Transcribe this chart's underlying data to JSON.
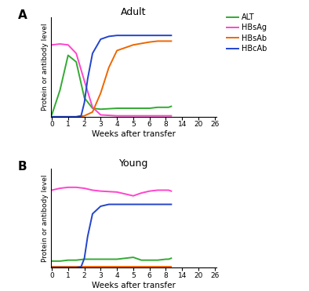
{
  "title_A": "Adult",
  "title_B": "Young",
  "panel_A_label": "A",
  "panel_B_label": "B",
  "xlabel": "Weeks after transfer",
  "ylabel": "Protein or antibody level",
  "legend_labels": [
    "ALT",
    "HBsAg",
    "HBsAb",
    "HBcAb"
  ],
  "legend_colors": [
    "#33aa33",
    "#ff44cc",
    "#ee6600",
    "#2244cc"
  ],
  "colors": {
    "ALT": "#33aa33",
    "HBsAg": "#ff44cc",
    "HBsAb": "#ee6600",
    "HBcAb": "#2244cc"
  },
  "x_tick_positions": [
    0,
    1,
    2,
    3,
    4,
    5,
    6,
    7,
    8,
    9,
    10,
    11
  ],
  "x_tick_labels": [
    "0",
    "1",
    "2",
    "3",
    "4",
    "5",
    "6",
    "8",
    "14",
    "20",
    "26",
    ""
  ],
  "x_real_weeks": [
    0,
    1,
    2,
    3,
    4,
    5,
    6,
    8,
    14,
    20,
    26
  ],
  "xlim": [
    -0.1,
    11.0
  ],
  "ylim": [
    0,
    1.05
  ],
  "background_color": "#ffffff",
  "linewidth": 1.4,
  "panel_A": {
    "ALT_x": [
      0,
      0.5,
      1.0,
      1.5,
      2.0,
      2.5,
      3.0,
      4.0,
      5.0,
      6.0,
      7.0,
      8.0,
      9.0,
      10.0
    ],
    "ALT_y": [
      0.02,
      0.28,
      0.65,
      0.58,
      0.2,
      0.09,
      0.08,
      0.09,
      0.09,
      0.09,
      0.1,
      0.1,
      0.1,
      0.11
    ],
    "HBsAg_x": [
      0,
      0.5,
      1.0,
      1.5,
      2.0,
      2.5,
      3.0,
      4.0,
      5.0,
      6.0,
      7.0,
      8.0,
      9.0,
      10.0
    ],
    "HBsAg_y": [
      0.76,
      0.77,
      0.76,
      0.67,
      0.38,
      0.1,
      0.02,
      0.01,
      0.01,
      0.01,
      0.01,
      0.01,
      0.01,
      0.01
    ],
    "HBsAb_x": [
      0,
      1.5,
      2.0,
      2.5,
      3.0,
      3.5,
      4.0,
      5.0,
      6.0,
      7.0,
      8.0,
      9.0,
      10.0
    ],
    "HBsAb_y": [
      0.0,
      0.0,
      0.01,
      0.05,
      0.25,
      0.52,
      0.7,
      0.76,
      0.79,
      0.8,
      0.8,
      0.8,
      0.8
    ],
    "HBcAb_x": [
      0,
      1.5,
      1.8,
      2.0,
      2.2,
      2.5,
      3.0,
      3.5,
      4.0,
      5.0,
      6.0,
      7.0,
      8.0,
      9.0,
      10.0
    ],
    "HBcAb_y": [
      0.0,
      0.0,
      0.01,
      0.15,
      0.4,
      0.67,
      0.82,
      0.85,
      0.86,
      0.86,
      0.86,
      0.86,
      0.86,
      0.86,
      0.86
    ]
  },
  "panel_B": {
    "ALT_x": [
      0,
      0.5,
      1.0,
      1.5,
      2.0,
      2.5,
      3.0,
      4.0,
      5.0,
      5.5,
      6.0,
      7.0,
      8.0,
      9.0,
      10.0
    ],
    "ALT_y": [
      0.07,
      0.07,
      0.08,
      0.08,
      0.09,
      0.09,
      0.09,
      0.09,
      0.11,
      0.08,
      0.08,
      0.08,
      0.09,
      0.09,
      0.1
    ],
    "HBsAg_x": [
      0,
      0.5,
      1.0,
      1.5,
      2.0,
      2.5,
      3.0,
      4.0,
      5.0,
      5.5,
      6.0,
      7.0,
      8.0,
      9.0,
      10.0
    ],
    "HBsAg_y": [
      0.82,
      0.84,
      0.85,
      0.85,
      0.84,
      0.82,
      0.81,
      0.8,
      0.76,
      0.79,
      0.81,
      0.82,
      0.82,
      0.82,
      0.81
    ],
    "HBsAb_x": [
      0,
      1.0,
      2.0,
      3.0,
      4.0,
      5.0,
      6.0,
      7.0,
      8.0,
      9.0,
      10.0
    ],
    "HBsAb_y": [
      0.01,
      0.01,
      0.01,
      0.01,
      0.01,
      0.01,
      0.01,
      0.01,
      0.01,
      0.01,
      0.01
    ],
    "HBcAb_x": [
      0,
      1.5,
      1.8,
      2.0,
      2.2,
      2.5,
      3.0,
      3.5,
      4.0,
      5.0,
      6.0,
      7.0,
      8.0,
      9.0,
      10.0
    ],
    "HBcAb_y": [
      0.0,
      0.0,
      0.01,
      0.1,
      0.33,
      0.57,
      0.65,
      0.67,
      0.67,
      0.67,
      0.67,
      0.67,
      0.67,
      0.67,
      0.67
    ]
  }
}
